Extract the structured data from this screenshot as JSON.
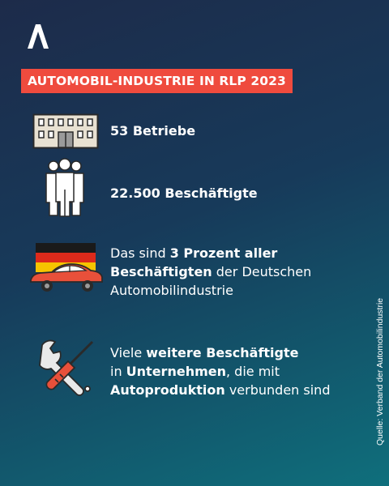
{
  "brand": {
    "logo_icon": "a-logo-icon"
  },
  "headline": "AUTOMOBIL-INDUSTRIE IN RLP 2023",
  "facts": [
    {
      "icon": "factory-building-icon",
      "parts": [
        {
          "text": "53 Betriebe",
          "bold": true
        }
      ]
    },
    {
      "icon": "people-group-icon",
      "parts": [
        {
          "text": "22.500 Beschäftigte",
          "bold": true
        }
      ]
    },
    {
      "icon": "german-flag-car-icon",
      "lines": [
        [
          {
            "text": "Das sind ",
            "bold": false
          },
          {
            "text": "3 Prozent aller",
            "bold": true
          }
        ],
        [
          {
            "text": "Beschäftigten",
            "bold": true
          },
          {
            "text": " der Deutschen",
            "bold": false
          }
        ],
        [
          {
            "text": "Automobilindustrie",
            "bold": false
          }
        ]
      ]
    },
    {
      "icon": "wrench-screwdriver-icon",
      "lines": [
        [
          {
            "text": "Viele ",
            "bold": false
          },
          {
            "text": "weitere Beschäftigte",
            "bold": true
          }
        ],
        [
          {
            "text": "in ",
            "bold": false
          },
          {
            "text": "Unternehmen",
            "bold": true
          },
          {
            "text": ", die mit",
            "bold": false
          }
        ],
        [
          {
            "text": "Autoproduktion",
            "bold": true
          },
          {
            "text": " verbunden sind",
            "bold": false
          }
        ]
      ]
    }
  ],
  "source": "Quelle: Verband der Automobilindustrie",
  "colors": {
    "accent": "#ef4b3e",
    "bg_top": "#1d2b4a",
    "bg_bottom": "#0f6f7c"
  }
}
